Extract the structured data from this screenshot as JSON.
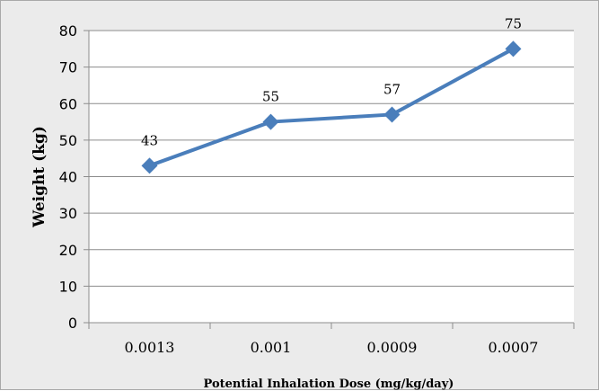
{
  "chart_data": {
    "type": "line",
    "categories": [
      "0.0013",
      "0.001",
      "0.0009",
      "0.0007"
    ],
    "series": [
      {
        "values": [
          43,
          55,
          57,
          75
        ],
        "color": "#4a7ebb",
        "marker": "diamond",
        "data_labels": [
          "43",
          "55",
          "57",
          "75"
        ]
      }
    ],
    "xlabel": "Potential Inhalation Dose (mg/kg/day)",
    "ylabel": "Weight (kg)",
    "ylim": [
      0,
      80
    ],
    "yticks": [
      "0",
      "10",
      "20",
      "30",
      "40",
      "50",
      "60",
      "70",
      "80"
    ],
    "grid": "horizontal",
    "legend": "none",
    "plot_background": "#ffffff",
    "chart_background": "#ebebeb",
    "gridline_color": "#8c8c8c"
  }
}
